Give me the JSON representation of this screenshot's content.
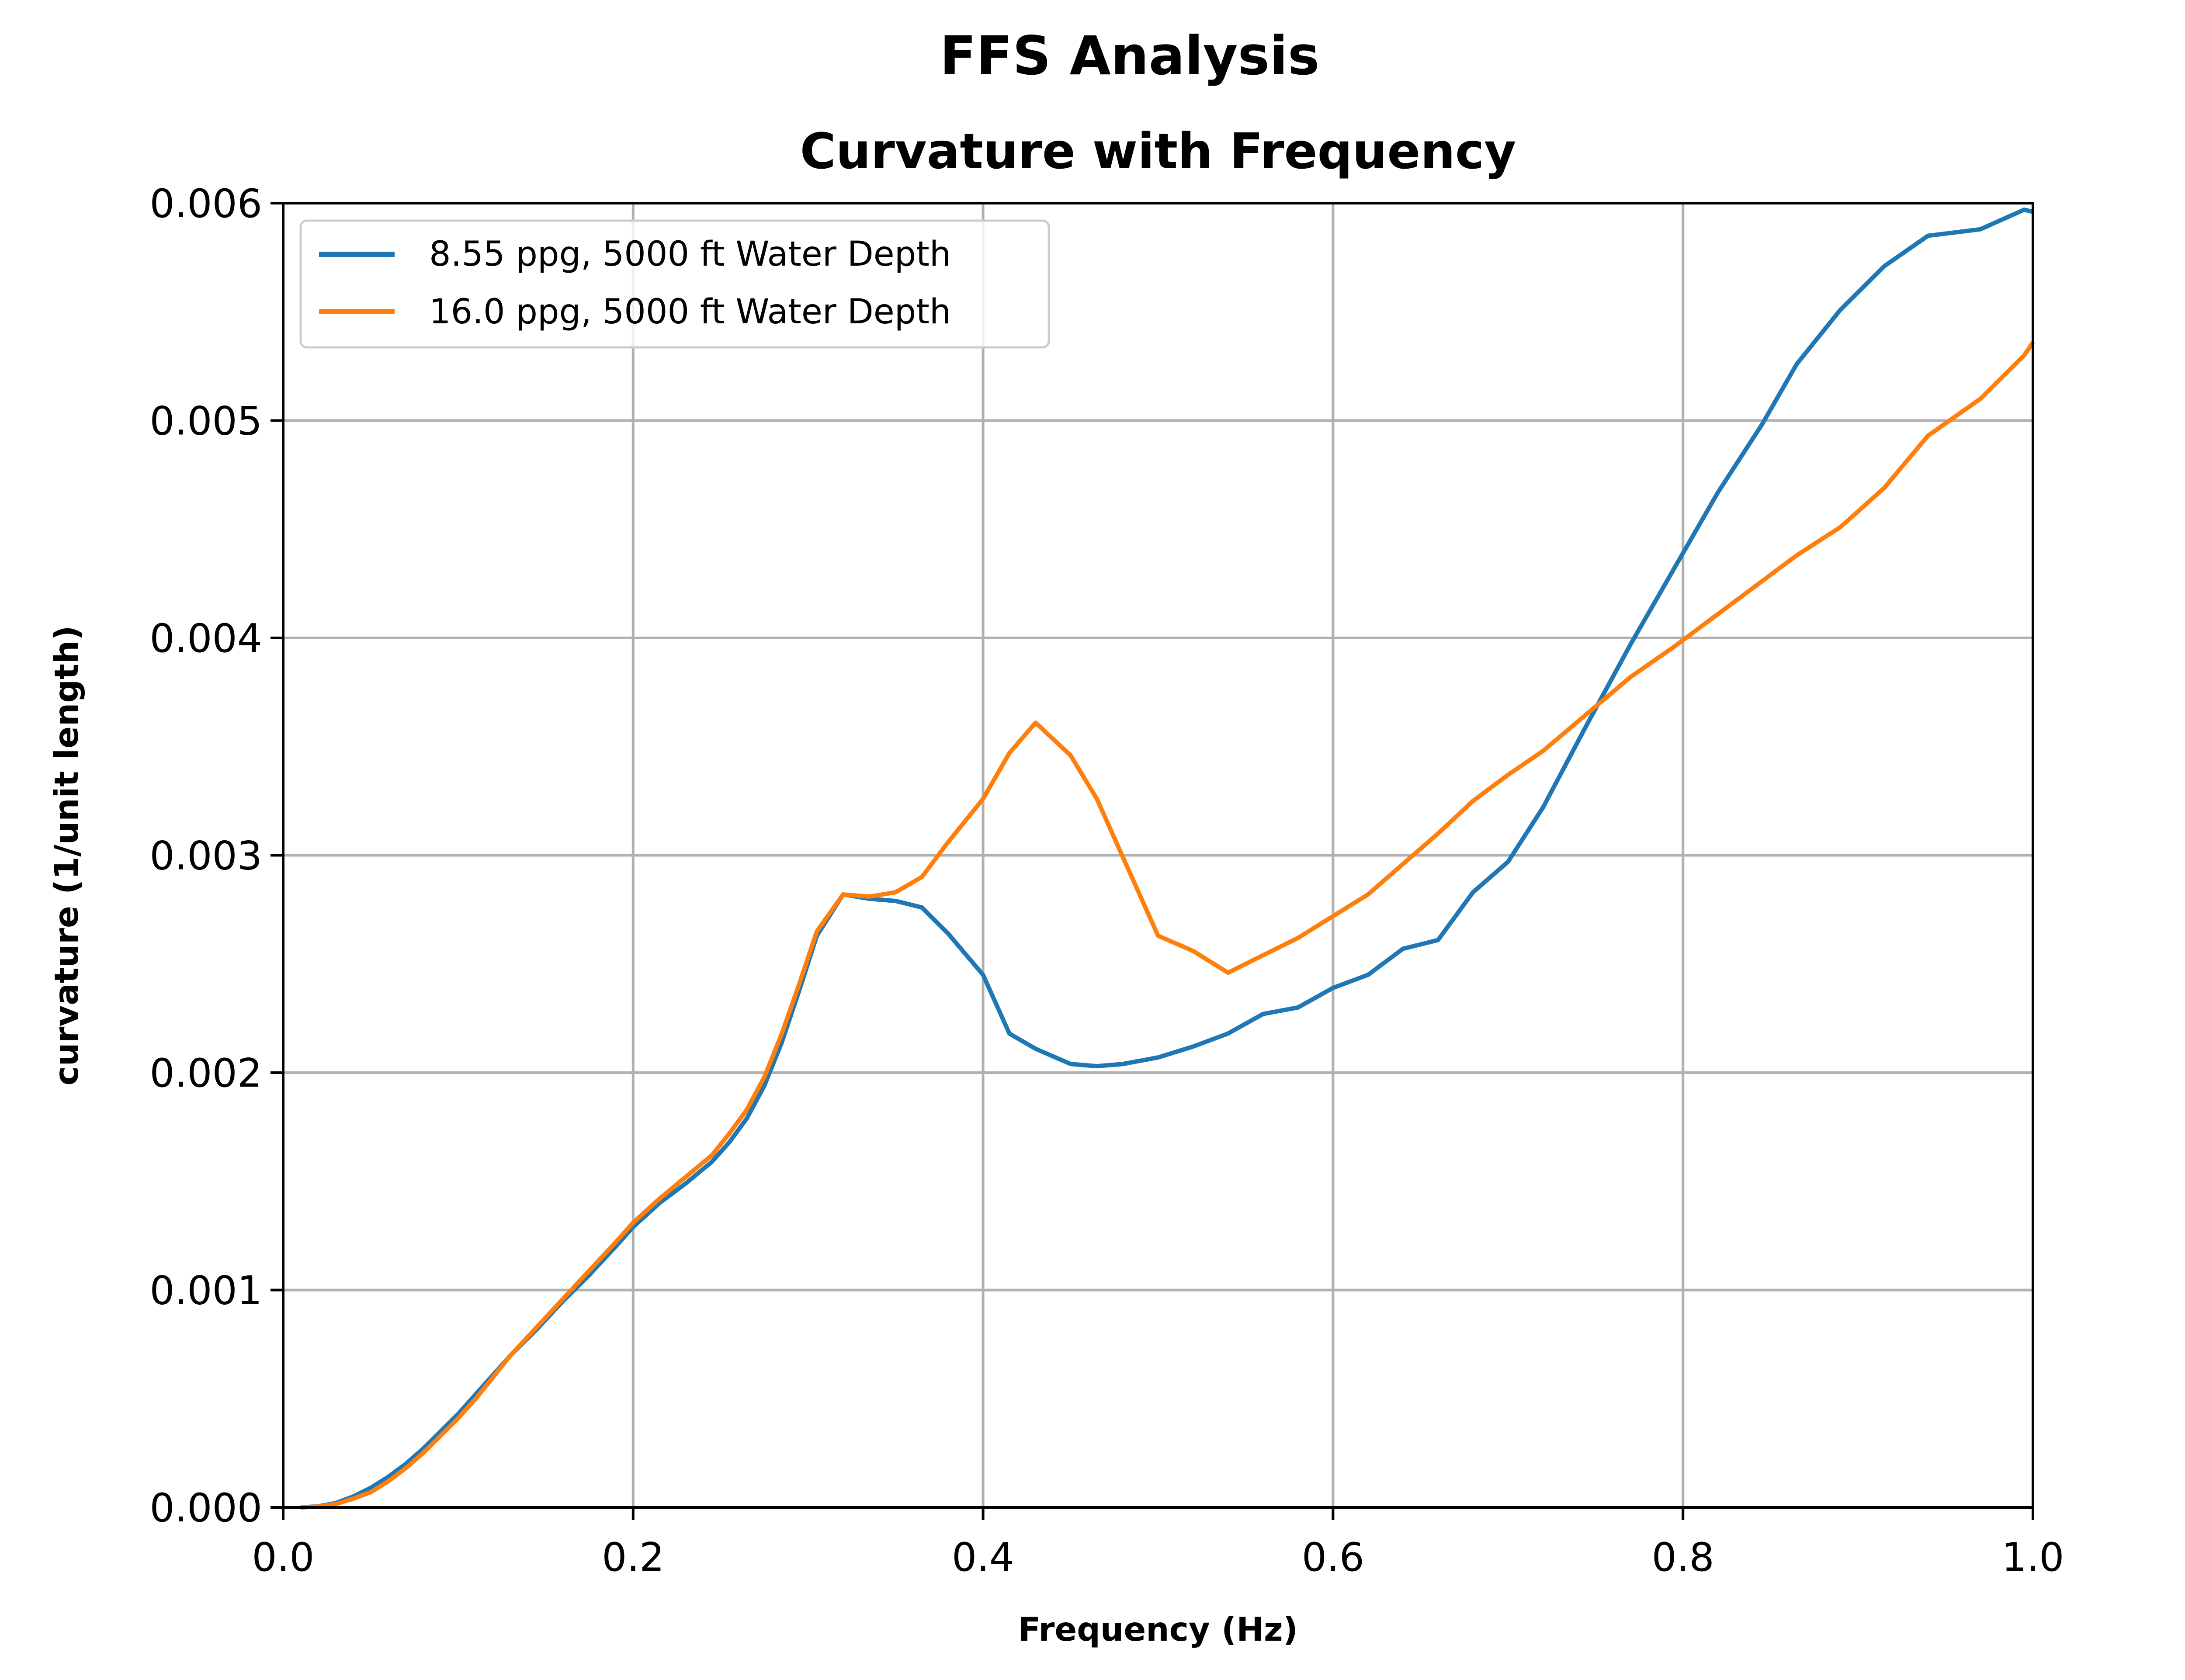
{
  "chart_data": {
    "type": "line",
    "suptitle": "FFS Analysis",
    "title": "Curvature with Frequency",
    "xlabel": "Frequency (Hz)",
    "ylabel": "curvature (1/unit length)",
    "xlim": [
      0.0,
      1.0
    ],
    "ylim": [
      0.0,
      0.006
    ],
    "xticks": [
      0.0,
      0.2,
      0.4,
      0.6,
      0.8,
      1.0
    ],
    "xtick_labels": [
      "0.0",
      "0.2",
      "0.4",
      "0.6",
      "0.8",
      "1.0"
    ],
    "yticks": [
      0.0,
      0.001,
      0.002,
      0.003,
      0.004,
      0.005,
      0.006
    ],
    "ytick_labels": [
      "0.000",
      "0.001",
      "0.002",
      "0.003",
      "0.004",
      "0.005",
      "0.006"
    ],
    "grid": true,
    "legend_position": "upper-left",
    "series": [
      {
        "name": "8.55 ppg, 5000 ft Water Depth",
        "color": "#1f77b4",
        "x": [
          0.01,
          0.02,
          0.03,
          0.04,
          0.05,
          0.06,
          0.07,
          0.08,
          0.09,
          0.1,
          0.11,
          0.12,
          0.13,
          0.145,
          0.16,
          0.175,
          0.19,
          0.2,
          0.215,
          0.23,
          0.245,
          0.255,
          0.265,
          0.275,
          0.285,
          0.295,
          0.305,
          0.32,
          0.335,
          0.35,
          0.365,
          0.38,
          0.4,
          0.415,
          0.43,
          0.45,
          0.465,
          0.48,
          0.5,
          0.52,
          0.54,
          0.56,
          0.58,
          0.6,
          0.62,
          0.64,
          0.66,
          0.68,
          0.7,
          0.72,
          0.745,
          0.77,
          0.795,
          0.82,
          0.845,
          0.865,
          0.89,
          0.915,
          0.94,
          0.97,
          0.995,
          1.0
        ],
        "y": [
          0.0,
          5e-06,
          2e-05,
          5e-05,
          9e-05,
          0.00014,
          0.0002,
          0.00027,
          0.00035,
          0.00043,
          0.00052,
          0.00061,
          0.0007,
          0.00082,
          0.00095,
          0.00107,
          0.0012,
          0.00129,
          0.0014,
          0.00149,
          0.00159,
          0.00168,
          0.00179,
          0.00194,
          0.00214,
          0.00238,
          0.00263,
          0.00282,
          0.0028,
          0.00279,
          0.00276,
          0.00264,
          0.00245,
          0.00218,
          0.00211,
          0.00204,
          0.00203,
          0.00204,
          0.00207,
          0.00212,
          0.00218,
          0.00227,
          0.0023,
          0.00239,
          0.00245,
          0.00257,
          0.00261,
          0.00283,
          0.00297,
          0.00322,
          0.0036,
          0.00397,
          0.00432,
          0.00467,
          0.00498,
          0.00526,
          0.00551,
          0.00571,
          0.00585,
          0.00588,
          0.00597,
          0.00596
        ]
      },
      {
        "name": "16.0 ppg, 5000 ft Water Depth",
        "color": "#ff7f0e",
        "x": [
          0.01,
          0.02,
          0.03,
          0.04,
          0.05,
          0.06,
          0.07,
          0.08,
          0.09,
          0.1,
          0.11,
          0.12,
          0.13,
          0.145,
          0.16,
          0.175,
          0.19,
          0.2,
          0.215,
          0.23,
          0.245,
          0.255,
          0.265,
          0.275,
          0.285,
          0.295,
          0.305,
          0.32,
          0.335,
          0.35,
          0.365,
          0.38,
          0.4,
          0.415,
          0.43,
          0.45,
          0.465,
          0.48,
          0.5,
          0.52,
          0.54,
          0.56,
          0.58,
          0.6,
          0.62,
          0.64,
          0.66,
          0.68,
          0.7,
          0.72,
          0.745,
          0.77,
          0.795,
          0.82,
          0.845,
          0.865,
          0.89,
          0.915,
          0.94,
          0.97,
          0.995,
          1.0
        ],
        "y": [
          0.0,
          4e-06,
          1.5e-05,
          4e-05,
          7e-05,
          0.00012,
          0.00018,
          0.00025,
          0.00033,
          0.00041,
          0.0005,
          0.0006,
          0.0007,
          0.00083,
          0.00096,
          0.00109,
          0.00122,
          0.00131,
          0.00142,
          0.00152,
          0.00162,
          0.00172,
          0.00183,
          0.00198,
          0.00218,
          0.00241,
          0.00265,
          0.00282,
          0.00281,
          0.00283,
          0.0029,
          0.00306,
          0.00326,
          0.00347,
          0.00361,
          0.00346,
          0.00326,
          0.00299,
          0.00263,
          0.00256,
          0.00246,
          0.00254,
          0.00262,
          0.00272,
          0.00282,
          0.00296,
          0.0031,
          0.00325,
          0.00337,
          0.00348,
          0.00365,
          0.00382,
          0.00396,
          0.00411,
          0.00426,
          0.00438,
          0.00451,
          0.00469,
          0.00493,
          0.0051,
          0.0053,
          0.00536
        ]
      }
    ]
  }
}
